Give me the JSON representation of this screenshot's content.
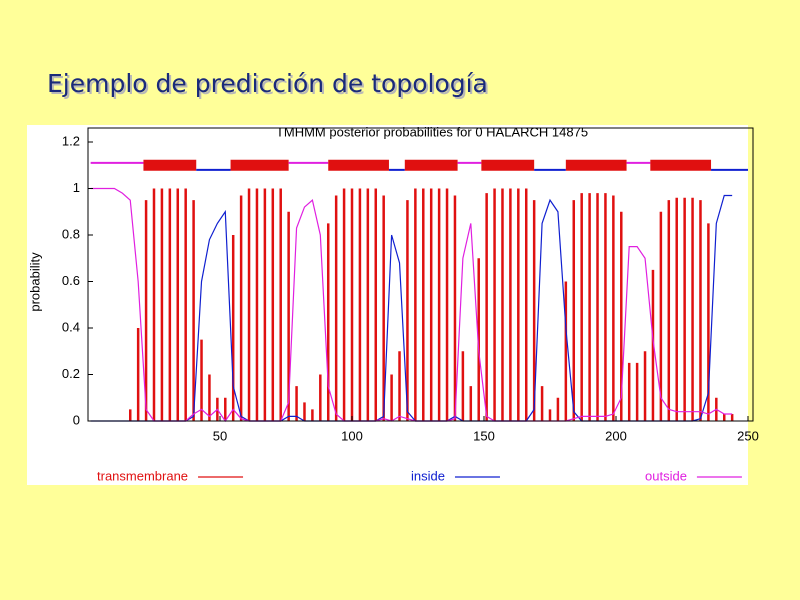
{
  "slide_title": "Ejemplo de predicción de topología",
  "chart_data": {
    "type": "line",
    "title": "TMHMM posterior probabilities for 0  HALARCH  14875",
    "y_label": "probability",
    "xlim": [
      0,
      250
    ],
    "xticks": [
      50,
      100,
      150,
      200,
      250
    ],
    "ylim": [
      0,
      1.2
    ],
    "yticks": [
      0,
      0.2,
      0.4,
      0.6,
      0.8,
      1,
      1.2
    ],
    "x": [
      1,
      4,
      7,
      10,
      13,
      16,
      19,
      22,
      25,
      28,
      31,
      34,
      37,
      40,
      43,
      46,
      49,
      52,
      55,
      58,
      61,
      64,
      67,
      70,
      73,
      76,
      79,
      82,
      85,
      88,
      91,
      94,
      97,
      100,
      103,
      106,
      109,
      112,
      115,
      118,
      121,
      124,
      127,
      130,
      133,
      136,
      139,
      142,
      145,
      148,
      151,
      154,
      157,
      160,
      163,
      166,
      169,
      172,
      175,
      178,
      181,
      184,
      187,
      190,
      193,
      196,
      199,
      202,
      205,
      208,
      211,
      214,
      217,
      220,
      223,
      226,
      229,
      232,
      235,
      238,
      241,
      244
    ],
    "series": [
      {
        "name": "transmembrane",
        "color": "#e01010",
        "style": "impulses",
        "level": 1.1,
        "values": [
          0,
          0,
          0,
          0,
          0,
          0.05,
          0.4,
          0.95,
          1,
          1,
          1,
          1,
          1,
          0.95,
          0.35,
          0.2,
          0.1,
          0.1,
          0.8,
          0.97,
          1,
          1,
          1,
          1,
          1,
          0.9,
          0.15,
          0.08,
          0.05,
          0.2,
          0.85,
          0.97,
          1,
          1,
          1,
          1,
          1,
          0.97,
          0.2,
          0.3,
          0.95,
          1,
          1,
          1,
          1,
          1,
          0.97,
          0.3,
          0.15,
          0.7,
          0.98,
          1,
          1,
          1,
          1,
          1,
          0.95,
          0.15,
          0.05,
          0.1,
          0.6,
          0.95,
          0.98,
          0.98,
          0.98,
          0.98,
          0.97,
          0.9,
          0.25,
          0.25,
          0.3,
          0.65,
          0.9,
          0.95,
          0.96,
          0.96,
          0.96,
          0.95,
          0.85,
          0.1,
          0.03,
          0.03
        ]
      },
      {
        "name": "inside",
        "color": "#1020d0",
        "style": "lines",
        "level": 1.08,
        "values": [
          0,
          0,
          0,
          0,
          0,
          0,
          0,
          0,
          0,
          0,
          0,
          0,
          0,
          0.02,
          0.6,
          0.78,
          0.85,
          0.9,
          0.15,
          0.02,
          0,
          0,
          0,
          0,
          0,
          0.02,
          0.02,
          0,
          0,
          0,
          0,
          0,
          0,
          0,
          0,
          0,
          0,
          0.02,
          0.8,
          0.68,
          0.04,
          0,
          0,
          0,
          0,
          0,
          0.02,
          0,
          0,
          0,
          0,
          0,
          0,
          0,
          0,
          0,
          0.05,
          0.85,
          0.95,
          0.9,
          0.4,
          0.04,
          0,
          0,
          0,
          0,
          0,
          0,
          0,
          0,
          0,
          0,
          0,
          0,
          0,
          0,
          0,
          0.01,
          0.12,
          0.85,
          0.97,
          0.97
        ]
      },
      {
        "name": "outside",
        "color": "#e020e0",
        "style": "lines",
        "level": 1.11,
        "values": [
          1,
          1,
          1,
          1,
          0.98,
          0.95,
          0.6,
          0.05,
          0,
          0,
          0,
          0,
          0,
          0.03,
          0.05,
          0.02,
          0.05,
          0,
          0.05,
          0.01,
          0,
          0,
          0,
          0,
          0,
          0.08,
          0.83,
          0.92,
          0.95,
          0.8,
          0.15,
          0.03,
          0,
          0,
          0,
          0,
          0,
          0.01,
          0,
          0.02,
          0.01,
          0,
          0,
          0,
          0,
          0,
          0.01,
          0.7,
          0.85,
          0.3,
          0.02,
          0,
          0,
          0,
          0,
          0,
          0,
          0,
          0,
          0,
          0,
          0.01,
          0.02,
          0.02,
          0.02,
          0.02,
          0.03,
          0.1,
          0.75,
          0.75,
          0.7,
          0.35,
          0.1,
          0.05,
          0.04,
          0.04,
          0.04,
          0.04,
          0.03,
          0.05,
          0.03,
          0.03
        ]
      }
    ],
    "topology": [
      {
        "start": 1,
        "end": 21,
        "series": 2
      },
      {
        "start": 21,
        "end": 41,
        "series": 0
      },
      {
        "start": 41,
        "end": 54,
        "series": 1
      },
      {
        "start": 54,
        "end": 76,
        "series": 0
      },
      {
        "start": 76,
        "end": 91,
        "series": 2
      },
      {
        "start": 91,
        "end": 114,
        "series": 0
      },
      {
        "start": 114,
        "end": 120,
        "series": 1
      },
      {
        "start": 120,
        "end": 140,
        "series": 0
      },
      {
        "start": 140,
        "end": 149,
        "series": 2
      },
      {
        "start": 149,
        "end": 169,
        "series": 0
      },
      {
        "start": 169,
        "end": 181,
        "series": 1
      },
      {
        "start": 181,
        "end": 204,
        "series": 0
      },
      {
        "start": 204,
        "end": 213,
        "series": 2
      },
      {
        "start": 213,
        "end": 236,
        "series": 0
      },
      {
        "start": 236,
        "end": 250,
        "series": 1
      }
    ]
  }
}
